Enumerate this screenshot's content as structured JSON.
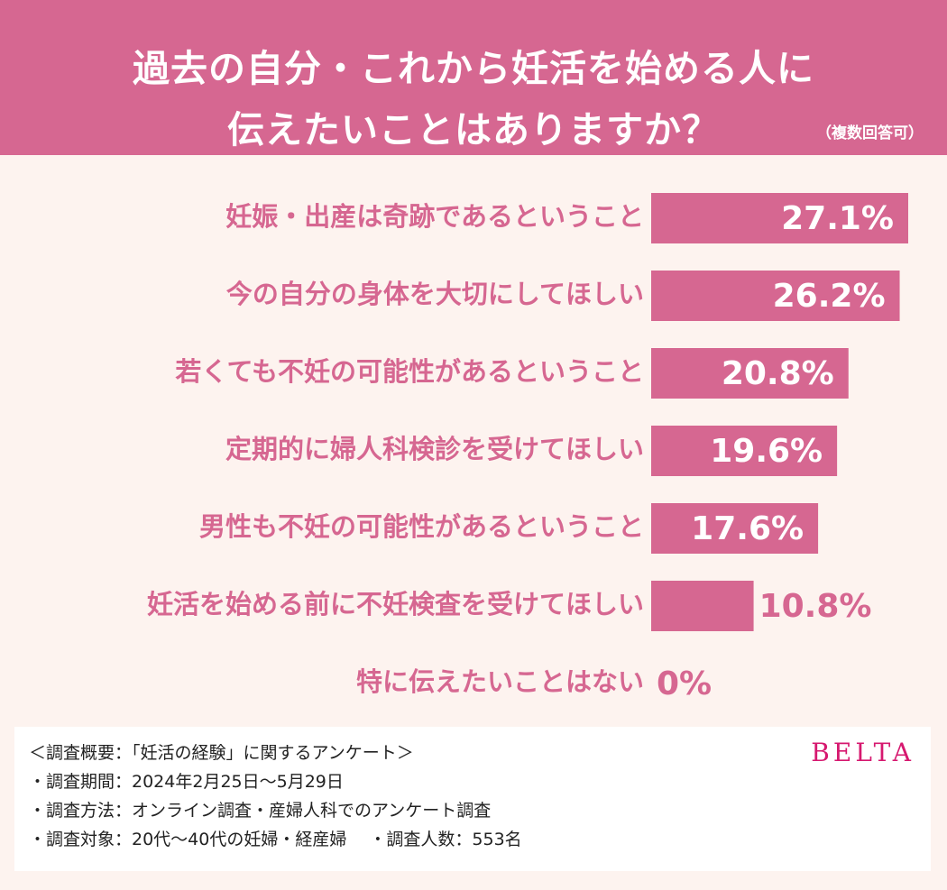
{
  "header": {
    "title_line1": "過去の自分・これから妊活を始める人に",
    "title_line2": "伝えたいことはありますか？",
    "note": "（複数回答可）"
  },
  "colors": {
    "header_bg": "#d66791",
    "bar": "#d66791",
    "page_bg": "#fdf3ef",
    "logo": "#d6186f"
  },
  "chart_data": {
    "type": "bar",
    "orientation": "horizontal",
    "categories": [
      "妊娠・出産は奇跡であるということ",
      "今の自分の身体を大切にしてほしい",
      "若くても不妊の可能性があるということ",
      "定期的に婦人科検診を受けてほしい",
      "男性も不妊の可能性があるということ",
      "妊活を始める前に不妊検査を受けてほしい",
      "特に伝えたいことはない"
    ],
    "values": [
      27.1,
      26.2,
      20.8,
      19.6,
      17.6,
      10.8,
      0
    ],
    "value_labels": [
      "27.1%",
      "26.2%",
      "20.8%",
      "19.6%",
      "17.6%",
      "10.8%",
      "0%"
    ],
    "unit": "%",
    "xlim": [
      0,
      27.1
    ]
  },
  "footer": {
    "lines": [
      "＜調査概要：「妊活の経験」に関するアンケート＞",
      "・調査期間：2024年2月25日～5月29日",
      "・調査方法：オンライン調査・産婦人科でのアンケート調査",
      "・調査対象：20代～40代の妊婦・経産婦　 ・調査人数：553名"
    ],
    "logo": "BELTA"
  }
}
